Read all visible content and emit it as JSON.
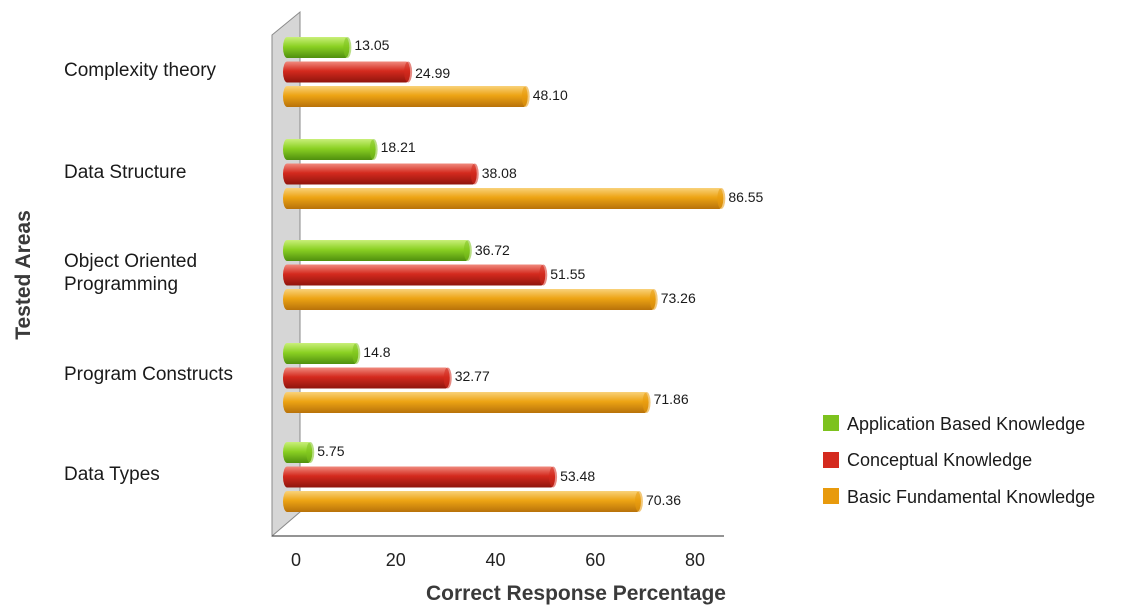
{
  "chart_data": {
    "type": "bar",
    "orientation": "horizontal",
    "title": "",
    "xlabel": "Correct Response Percentage",
    "ylabel": "Tested Areas",
    "xlim": [
      0,
      80
    ],
    "xticks": [
      0,
      20,
      40,
      60,
      80
    ],
    "grid": false,
    "legend_position": "right",
    "categories": [
      "Complexity theory",
      "Data Structure",
      "Object Oriented Programming",
      "Program Constructs",
      "Data Types"
    ],
    "series": [
      {
        "name": "Application Based Knowledge",
        "color": "#7dc21e",
        "values": [
          13.05,
          18.21,
          36.72,
          14.8,
          5.75
        ],
        "labels": [
          "13.05",
          "18.21",
          "36.72",
          "14.8",
          "5.75"
        ]
      },
      {
        "name": "Conceptual Knowledge",
        "color": "#d42a1e",
        "values": [
          24.99,
          38.08,
          51.55,
          32.77,
          53.48
        ],
        "labels": [
          "24.99",
          "38.08",
          "51.55",
          "32.77",
          "53.48"
        ]
      },
      {
        "name": "Basic Fundamental Knowledge",
        "color": "#e89a0c",
        "values": [
          48.1,
          86.55,
          73.26,
          71.86,
          70.36
        ],
        "labels": [
          "48.10",
          "86.55",
          "73.26",
          "71.86",
          "70.36"
        ]
      }
    ]
  }
}
